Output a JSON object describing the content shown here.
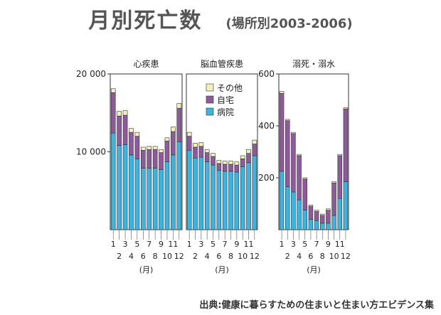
{
  "title": "月別死亡数",
  "subtitle": "(場所別2003-2006)",
  "source": "出典:健康に暮らすための住まいと住まい方エビデンス集",
  "colors": {
    "hospital": "#3db3e0",
    "home": "#8e5b9a",
    "other": "#f3f0be",
    "edge": "#333333"
  },
  "legend": [
    {
      "key": "other",
      "label": "その他"
    },
    {
      "key": "home",
      "label": "自宅"
    },
    {
      "key": "hospital",
      "label": "病院"
    }
  ],
  "chart_data": [
    {
      "type": "bar",
      "stacked": true,
      "title": "心疾患",
      "xlabel": "(月)",
      "categories": [
        "1",
        "2",
        "3",
        "4",
        "5",
        "6",
        "7",
        "8",
        "9",
        "10",
        "11",
        "12"
      ],
      "ylim": [
        0,
        20000
      ],
      "yticks": [
        {
          "value": 10000,
          "label": "10 000"
        },
        {
          "value": 20000,
          "label": "20 000"
        }
      ],
      "series": [
        {
          "name": "病院",
          "values": [
            12400,
            10800,
            10900,
            9600,
            9100,
            7900,
            7900,
            7900,
            7700,
            8700,
            9600,
            11300
          ]
        },
        {
          "name": "自宅",
          "values": [
            5200,
            3800,
            3800,
            2900,
            2900,
            2300,
            2400,
            2400,
            2200,
            2700,
            3000,
            4300
          ]
        },
        {
          "name": "その他",
          "values": [
            500,
            600,
            600,
            500,
            500,
            400,
            400,
            400,
            400,
            400,
            600,
            600
          ]
        }
      ]
    },
    {
      "type": "bar",
      "stacked": true,
      "title": "脳血管疾患",
      "xlabel": "(月)",
      "categories": [
        "1",
        "2",
        "3",
        "4",
        "5",
        "6",
        "7",
        "8",
        "9",
        "10",
        "11",
        "12"
      ],
      "ylim": [
        0,
        20000
      ],
      "series": [
        {
          "name": "病院",
          "values": [
            10200,
            9200,
            9300,
            8700,
            8300,
            7600,
            7500,
            7500,
            7400,
            8100,
            8600,
            9500
          ]
        },
        {
          "name": "自宅",
          "values": [
            1800,
            1400,
            1400,
            1200,
            1100,
            900,
            900,
            900,
            900,
            1000,
            1200,
            1500
          ]
        },
        {
          "name": "その他",
          "values": [
            500,
            500,
            500,
            400,
            400,
            400,
            400,
            400,
            400,
            400,
            500,
            500
          ]
        }
      ]
    },
    {
      "type": "bar",
      "stacked": true,
      "title": "溺死・溺水",
      "xlabel": "(月)",
      "categories": [
        "1",
        "2",
        "3",
        "4",
        "5",
        "6",
        "7",
        "8",
        "9",
        "10",
        "11",
        "12"
      ],
      "ylim": [
        0,
        600
      ],
      "yticks": [
        {
          "value": 200,
          "label": "200"
        },
        {
          "value": 400,
          "label": "400"
        },
        {
          "value": 600,
          "label": "600"
        }
      ],
      "series": [
        {
          "name": "病院",
          "values": [
            225,
            165,
            145,
            115,
            75,
            40,
            35,
            25,
            25,
            55,
            120,
            185
          ]
        },
        {
          "name": "自宅",
          "values": [
            300,
            255,
            225,
            170,
            120,
            50,
            35,
            30,
            50,
            125,
            165,
            280
          ]
        },
        {
          "name": "その他",
          "values": [
            8,
            5,
            5,
            5,
            5,
            5,
            5,
            5,
            5,
            5,
            5,
            5
          ]
        }
      ]
    }
  ]
}
